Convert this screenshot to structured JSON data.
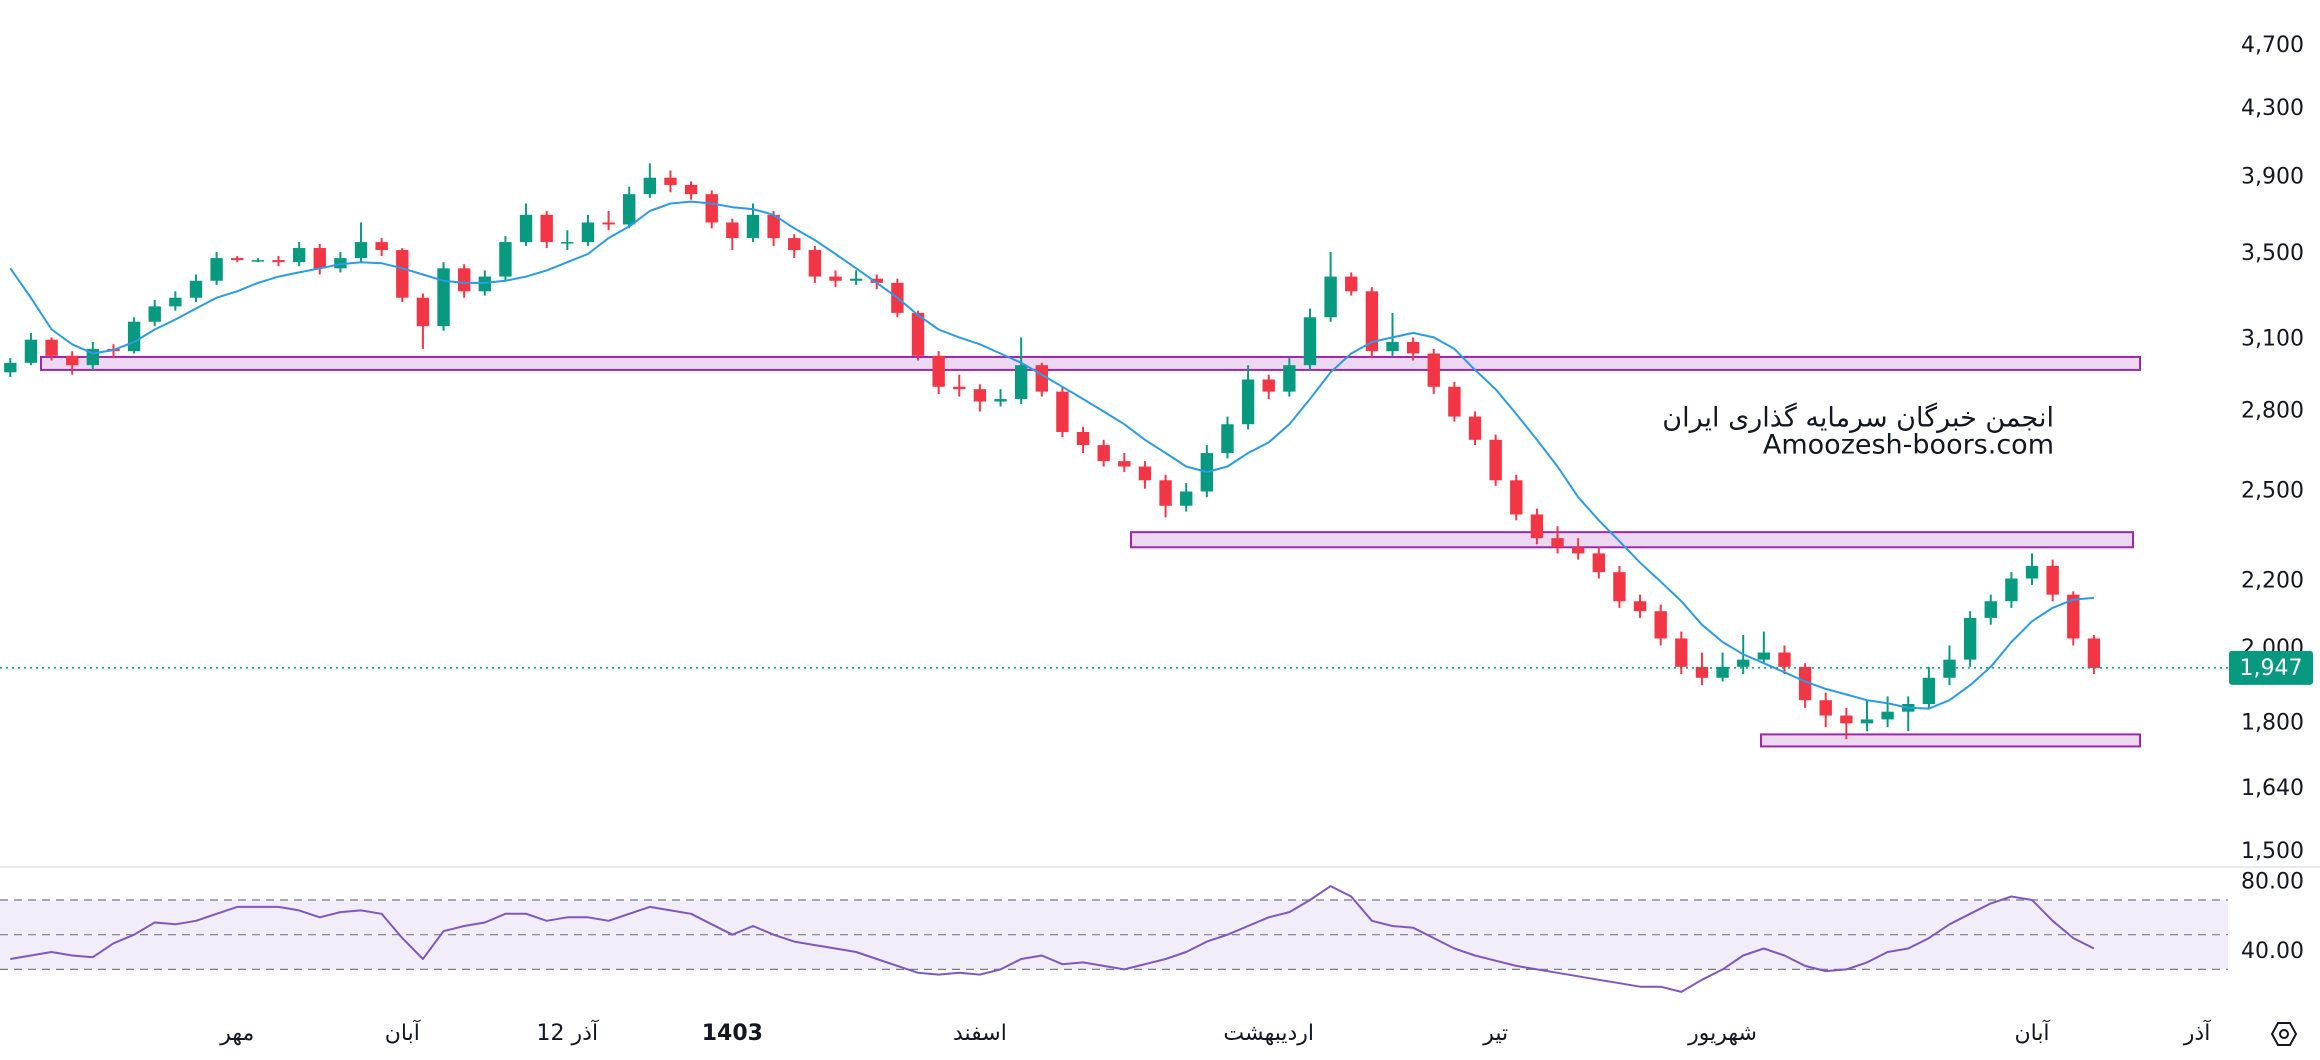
{
  "chart_data": {
    "type": "candlestick",
    "categories": [
      null,
      null,
      null,
      null,
      null,
      null,
      null,
      null,
      null,
      null,
      null,
      "مهر",
      null,
      null,
      null,
      null,
      null,
      null,
      null,
      "آبان",
      null,
      null,
      null,
      null,
      null,
      null,
      null,
      "12 آذر",
      null,
      null,
      null,
      null,
      null,
      null,
      null,
      "1403",
      null,
      null,
      null,
      null,
      null,
      null,
      null,
      null,
      null,
      null,
      null,
      "اسفند",
      null,
      null,
      null,
      null,
      null,
      null,
      null,
      null,
      null,
      null,
      null,
      null,
      null,
      "اردیبهشت",
      null,
      null,
      null,
      null,
      null,
      null,
      null,
      null,
      null,
      null,
      "تیر",
      null,
      null,
      null,
      null,
      null,
      null,
      null,
      null,
      null,
      null,
      "شهریور",
      null,
      null,
      null,
      null,
      null,
      null,
      null,
      null,
      null,
      null,
      null,
      null,
      null,
      null,
      "آبان",
      null,
      null,
      null,
      null,
      null,
      null,
      null,
      "آذر",
      null
    ],
    "ohlc": [
      [
        2960,
        3020,
        2940,
        3000
      ],
      [
        3000,
        3130,
        2990,
        3100
      ],
      [
        3100,
        3110,
        3010,
        3030
      ],
      [
        3030,
        3050,
        2950,
        2990
      ],
      [
        2990,
        3090,
        2970,
        3060
      ],
      [
        3060,
        3080,
        3020,
        3050
      ],
      [
        3050,
        3200,
        3040,
        3180
      ],
      [
        3180,
        3280,
        3160,
        3250
      ],
      [
        3250,
        3320,
        3230,
        3290
      ],
      [
        3290,
        3400,
        3270,
        3370
      ],
      [
        3370,
        3510,
        3350,
        3480
      ],
      [
        3480,
        3490,
        3460,
        3470
      ],
      [
        3470,
        3480,
        3460,
        3470
      ],
      [
        3470,
        3490,
        3440,
        3460
      ],
      [
        3460,
        3560,
        3440,
        3530
      ],
      [
        3530,
        3550,
        3400,
        3430
      ],
      [
        3430,
        3510,
        3410,
        3480
      ],
      [
        3480,
        3660,
        3460,
        3560
      ],
      [
        3560,
        3580,
        3490,
        3520
      ],
      [
        3520,
        3530,
        3270,
        3290
      ],
      [
        3290,
        3310,
        3060,
        3160
      ],
      [
        3160,
        3460,
        3140,
        3430
      ],
      [
        3430,
        3450,
        3290,
        3320
      ],
      [
        3320,
        3420,
        3300,
        3390
      ],
      [
        3390,
        3590,
        3370,
        3560
      ],
      [
        3560,
        3760,
        3540,
        3700
      ],
      [
        3700,
        3720,
        3530,
        3560
      ],
      [
        3560,
        3620,
        3520,
        3560
      ],
      [
        3560,
        3700,
        3540,
        3660
      ],
      [
        3660,
        3720,
        3620,
        3650
      ],
      [
        3650,
        3850,
        3630,
        3810
      ],
      [
        3810,
        3980,
        3790,
        3900
      ],
      [
        3900,
        3940,
        3820,
        3860
      ],
      [
        3860,
        3880,
        3780,
        3810
      ],
      [
        3810,
        3830,
        3630,
        3660
      ],
      [
        3660,
        3680,
        3520,
        3580
      ],
      [
        3580,
        3760,
        3560,
        3700
      ],
      [
        3700,
        3720,
        3540,
        3580
      ],
      [
        3580,
        3600,
        3480,
        3520
      ],
      [
        3520,
        3540,
        3360,
        3390
      ],
      [
        3390,
        3420,
        3340,
        3370
      ],
      [
        3370,
        3420,
        3350,
        3380
      ],
      [
        3380,
        3400,
        3330,
        3360
      ],
      [
        3360,
        3380,
        3200,
        3220
      ],
      [
        3220,
        3230,
        3010,
        3030
      ],
      [
        3030,
        3050,
        2870,
        2900
      ],
      [
        2900,
        2950,
        2860,
        2890
      ],
      [
        2890,
        2910,
        2800,
        2840
      ],
      [
        2840,
        2890,
        2820,
        2850
      ],
      [
        2850,
        3110,
        2830,
        2990
      ],
      [
        2990,
        3000,
        2860,
        2880
      ],
      [
        2880,
        2900,
        2700,
        2720
      ],
      [
        2720,
        2740,
        2640,
        2670
      ],
      [
        2670,
        2690,
        2590,
        2610
      ],
      [
        2610,
        2640,
        2570,
        2590
      ],
      [
        2590,
        2610,
        2510,
        2540
      ],
      [
        2540,
        2560,
        2410,
        2450
      ],
      [
        2450,
        2530,
        2430,
        2500
      ],
      [
        2500,
        2670,
        2480,
        2640
      ],
      [
        2640,
        2780,
        2620,
        2750
      ],
      [
        2750,
        2990,
        2730,
        2930
      ],
      [
        2930,
        2950,
        2850,
        2880
      ],
      [
        2880,
        3020,
        2860,
        2990
      ],
      [
        2990,
        3240,
        2970,
        3200
      ],
      [
        3200,
        3510,
        3180,
        3390
      ],
      [
        3390,
        3410,
        3300,
        3320
      ],
      [
        3320,
        3340,
        3020,
        3050
      ],
      [
        3050,
        3220,
        3030,
        3090
      ],
      [
        3090,
        3110,
        3010,
        3040
      ],
      [
        3040,
        3060,
        2870,
        2900
      ],
      [
        2900,
        2920,
        2760,
        2780
      ],
      [
        2780,
        2800,
        2670,
        2690
      ],
      [
        2690,
        2710,
        2520,
        2540
      ],
      [
        2540,
        2560,
        2400,
        2420
      ],
      [
        2420,
        2440,
        2320,
        2340
      ],
      [
        2340,
        2380,
        2290,
        2310
      ],
      [
        2310,
        2340,
        2270,
        2290
      ],
      [
        2290,
        2310,
        2210,
        2230
      ],
      [
        2230,
        2250,
        2120,
        2140
      ],
      [
        2140,
        2160,
        2090,
        2110
      ],
      [
        2110,
        2130,
        2010,
        2030
      ],
      [
        2030,
        2050,
        1930,
        1950
      ],
      [
        1950,
        1990,
        1900,
        1920
      ],
      [
        1920,
        1990,
        1910,
        1950
      ],
      [
        1950,
        2040,
        1930,
        1970
      ],
      [
        1970,
        2050,
        1960,
        1990
      ],
      [
        1990,
        2010,
        1930,
        1950
      ],
      [
        1950,
        1960,
        1840,
        1860
      ],
      [
        1860,
        1880,
        1790,
        1820
      ],
      [
        1820,
        1840,
        1760,
        1800
      ],
      [
        1800,
        1860,
        1780,
        1810
      ],
      [
        1810,
        1870,
        1790,
        1830
      ],
      [
        1830,
        1870,
        1780,
        1850
      ],
      [
        1850,
        1950,
        1840,
        1920
      ],
      [
        1920,
        2010,
        1900,
        1970
      ],
      [
        1970,
        2110,
        1950,
        2090
      ],
      [
        2090,
        2160,
        2070,
        2140
      ],
      [
        2140,
        2230,
        2120,
        2210
      ],
      [
        2210,
        2290,
        2190,
        2250
      ],
      [
        2250,
        2270,
        2140,
        2160
      ],
      [
        2160,
        2170,
        2010,
        2030
      ],
      [
        2030,
        2040,
        1930,
        1947
      ],
      null,
      null,
      null,
      null,
      null,
      null
    ],
    "up_color": "#089981",
    "down_color": "#f23645",
    "log_scale": true,
    "ylim": [
      1500,
      4700
    ],
    "yticks": [
      {
        "value": 1500,
        "label": "1,500"
      },
      {
        "value": 1640,
        "label": "1,640"
      },
      {
        "value": 1800,
        "label": "1,800"
      },
      {
        "value": 2000,
        "label": "2,000"
      },
      {
        "value": 2200,
        "label": "2,200"
      },
      {
        "value": 2500,
        "label": "2,500"
      },
      {
        "value": 2800,
        "label": "2,800"
      },
      {
        "value": 3100,
        "label": "3,100"
      },
      {
        "value": 3500,
        "label": "3,500"
      },
      {
        "value": 3900,
        "label": "3,900"
      },
      {
        "value": 4300,
        "label": "4,300"
      },
      {
        "value": 4700,
        "label": "4,700"
      }
    ],
    "grid": false,
    "ma": {
      "color": "#2b9be8",
      "values": [
        3430,
        3290,
        3145,
        3080,
        3040,
        3055,
        3090,
        3145,
        3190,
        3240,
        3290,
        3320,
        3360,
        3390,
        3410,
        3430,
        3450,
        3460,
        3455,
        3430,
        3400,
        3370,
        3360,
        3360,
        3370,
        3390,
        3420,
        3460,
        3500,
        3580,
        3640,
        3720,
        3760,
        3770,
        3760,
        3740,
        3730,
        3700,
        3630,
        3570,
        3500,
        3430,
        3360,
        3290,
        3210,
        3145,
        3110,
        3080,
        3040,
        3000,
        2950,
        2900,
        2850,
        2800,
        2750,
        2690,
        2640,
        2590,
        2570,
        2590,
        2640,
        2680,
        2750,
        2850,
        2960,
        3040,
        3090,
        3110,
        3130,
        3110,
        3060,
        2970,
        2890,
        2790,
        2690,
        2590,
        2480,
        2400,
        2330,
        2260,
        2200,
        2140,
        2070,
        2020,
        1985,
        1960,
        1935,
        1910,
        1890,
        1875,
        1860,
        1852,
        1840,
        1838,
        1860,
        1900,
        1950,
        2020,
        2080,
        2120,
        2145,
        2150,
        null,
        null,
        null,
        null,
        null,
        null
      ]
    },
    "zones": [
      {
        "low": 2970,
        "high": 3025
      },
      {
        "low": 2310,
        "high": 2360
      },
      {
        "low": 1742,
        "high": 1772
      }
    ],
    "zone_color": "#9c27b0",
    "last_price": {
      "value": 1947,
      "label": "1,947"
    },
    "last_price_color": "#089981",
    "annotations": [
      "انجمن خبرگان سرمایه گذاری ایران",
      "Amoozesh-boors.com"
    ],
    "rsi": {
      "color": "#7e57c2",
      "values": [
        36,
        38,
        40,
        38,
        37,
        45,
        50,
        57,
        56,
        58,
        62,
        66,
        66,
        66,
        64,
        60,
        63,
        64,
        62,
        48,
        36,
        52,
        55,
        57,
        62,
        62,
        58,
        60,
        60,
        58,
        62,
        66,
        64,
        62,
        56,
        50,
        55,
        50,
        46,
        44,
        42,
        40,
        36,
        32,
        28,
        27,
        28,
        27,
        30,
        36,
        38,
        33,
        34,
        32,
        30,
        33,
        36,
        40,
        46,
        50,
        55,
        60,
        63,
        70,
        78,
        72,
        58,
        55,
        54,
        48,
        42,
        38,
        35,
        32,
        30,
        28,
        26,
        24,
        22,
        20,
        20,
        17,
        24,
        30,
        38,
        42,
        38,
        32,
        29,
        30,
        34,
        40,
        42,
        48,
        56,
        62,
        68,
        72,
        70,
        58,
        48,
        42,
        null,
        null,
        null,
        null,
        null,
        null
      ],
      "ylim": [
        6,
        89
      ],
      "yticks": [
        {
          "value": 80,
          "label": "80.00"
        },
        {
          "value": 40,
          "label": "40.00"
        }
      ],
      "levels": [
        30,
        50,
        70
      ]
    }
  }
}
